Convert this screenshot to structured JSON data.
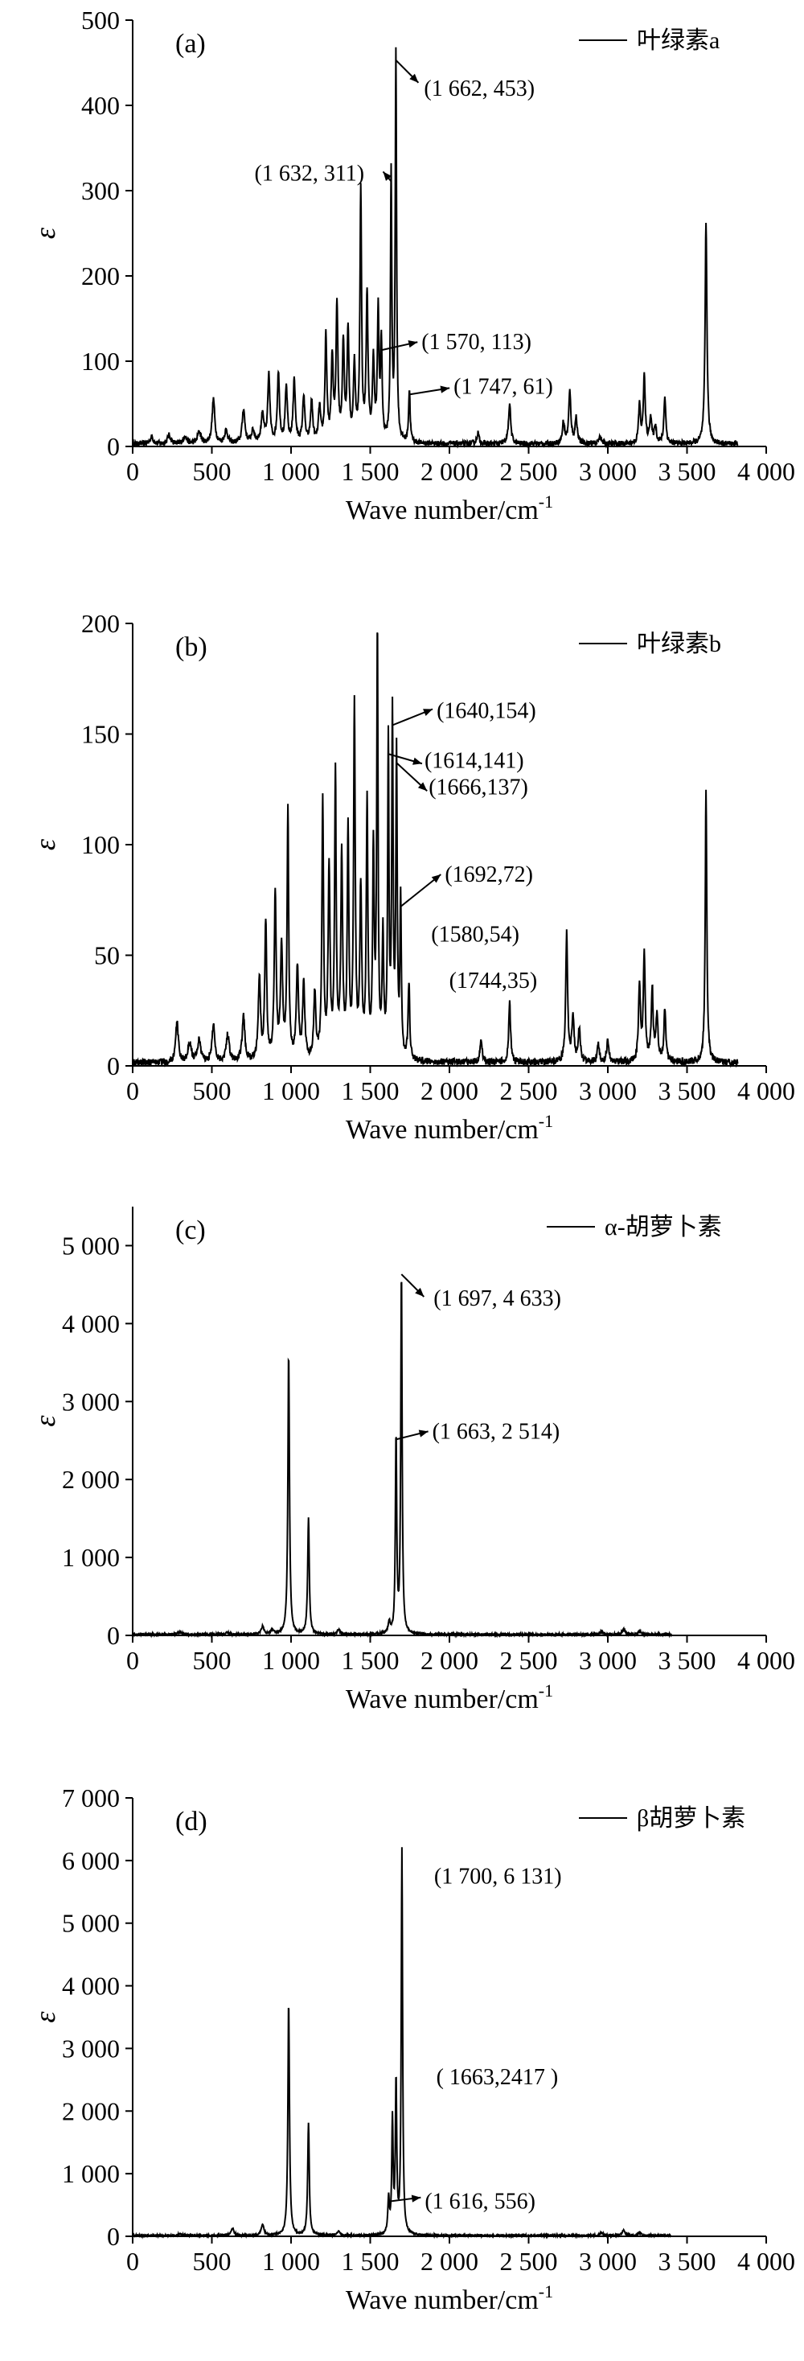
{
  "chart_data": [
    {
      "type": "line",
      "panel_label": "(a)",
      "legend": "叶绿素a",
      "xlabel": "Wave number/cm",
      "xlabel_sup": "-1",
      "ylabel": "ε",
      "xlim": [
        0,
        4000
      ],
      "ylim": [
        0,
        500
      ],
      "x_ticks": [
        0,
        500,
        1000,
        1500,
        2000,
        2500,
        3000,
        3500,
        4000
      ],
      "x_tick_labels": [
        "0",
        "500",
        "1 000",
        "1 500",
        "2 000",
        "2 500",
        "3 000",
        "3 500",
        "4 000"
      ],
      "y_ticks": [
        0,
        100,
        200,
        300,
        400,
        500
      ],
      "y_tick_labels": [
        "0",
        "100",
        "200",
        "300",
        "400",
        "500"
      ],
      "baseline_noise": 6,
      "x_end": 3820,
      "peaks": [
        [
          120,
          8,
          12
        ],
        [
          230,
          10,
          12
        ],
        [
          330,
          9,
          12
        ],
        [
          420,
          14,
          12
        ],
        [
          510,
          52,
          10
        ],
        [
          590,
          15,
          12
        ],
        [
          700,
          40,
          10
        ],
        [
          760,
          14,
          12
        ],
        [
          820,
          35,
          10
        ],
        [
          860,
          78,
          8
        ],
        [
          920,
          82,
          8
        ],
        [
          970,
          64,
          8
        ],
        [
          1020,
          75,
          8
        ],
        [
          1080,
          55,
          8
        ],
        [
          1130,
          48,
          8
        ],
        [
          1180,
          40,
          8
        ],
        [
          1220,
          125,
          7
        ],
        [
          1260,
          98,
          7
        ],
        [
          1290,
          160,
          7
        ],
        [
          1330,
          115,
          7
        ],
        [
          1360,
          130,
          7
        ],
        [
          1400,
          90,
          7
        ],
        [
          1440,
          293,
          6
        ],
        [
          1480,
          172,
          7
        ],
        [
          1520,
          95,
          7
        ],
        [
          1550,
          153,
          6
        ],
        [
          1570,
          113,
          6
        ],
        [
          1632,
          311,
          5
        ],
        [
          1662,
          453,
          5
        ],
        [
          1747,
          61,
          6
        ],
        [
          2180,
          13,
          8
        ],
        [
          2380,
          48,
          8
        ],
        [
          2720,
          25,
          8
        ],
        [
          2760,
          60,
          8
        ],
        [
          2800,
          30,
          8
        ],
        [
          2950,
          10,
          8
        ],
        [
          3200,
          45,
          7
        ],
        [
          3230,
          78,
          7
        ],
        [
          3270,
          30,
          8
        ],
        [
          3300,
          20,
          8
        ],
        [
          3360,
          55,
          7
        ],
        [
          3620,
          260,
          7
        ]
      ],
      "annotations": [
        {
          "label": "(1 662, 453)",
          "x": 1662,
          "y": 453
        },
        {
          "label": "(1 632, 311)",
          "x": 1632,
          "y": 311
        },
        {
          "label": "(1 570, 113)",
          "x": 1570,
          "y": 113
        },
        {
          "label": "(1 747, 61)",
          "x": 1747,
          "y": 61
        }
      ]
    },
    {
      "type": "line",
      "panel_label": "(b)",
      "legend": "叶绿素b",
      "xlabel": "Wave number/cm",
      "xlabel_sup": "-1",
      "ylabel": "ε",
      "xlim": [
        0,
        4000
      ],
      "ylim": [
        0,
        200
      ],
      "x_ticks": [
        0,
        500,
        1000,
        1500,
        2000,
        2500,
        3000,
        3500,
        4000
      ],
      "x_tick_labels": [
        "0",
        "500",
        "1 000",
        "1 500",
        "2 000",
        "2 500",
        "3 000",
        "3 500",
        "4 000"
      ],
      "y_ticks": [
        0,
        50,
        100,
        150,
        200
      ],
      "y_tick_labels": [
        "0",
        "50",
        "100",
        "150",
        "200"
      ],
      "baseline_noise": 3,
      "x_end": 3820,
      "peaks": [
        [
          280,
          18,
          10
        ],
        [
          360,
          8,
          12
        ],
        [
          420,
          10,
          12
        ],
        [
          510,
          17,
          10
        ],
        [
          600,
          12,
          12
        ],
        [
          700,
          20,
          10
        ],
        [
          800,
          38,
          8
        ],
        [
          840,
          63,
          7
        ],
        [
          900,
          76,
          7
        ],
        [
          940,
          50,
          8
        ],
        [
          980,
          113,
          6
        ],
        [
          1040,
          42,
          8
        ],
        [
          1080,
          35,
          8
        ],
        [
          1150,
          30,
          8
        ],
        [
          1200,
          115,
          6
        ],
        [
          1240,
          85,
          7
        ],
        [
          1280,
          128,
          6
        ],
        [
          1320,
          90,
          7
        ],
        [
          1360,
          102,
          6
        ],
        [
          1400,
          160,
          6
        ],
        [
          1440,
          75,
          7
        ],
        [
          1480,
          115,
          6
        ],
        [
          1520,
          92,
          6
        ],
        [
          1545,
          190,
          5
        ],
        [
          1580,
          54,
          6
        ],
        [
          1614,
          141,
          5
        ],
        [
          1640,
          154,
          5
        ],
        [
          1666,
          137,
          5
        ],
        [
          1692,
          72,
          5
        ],
        [
          1744,
          35,
          6
        ],
        [
          2200,
          10,
          8
        ],
        [
          2380,
          27,
          7
        ],
        [
          2740,
          58,
          7
        ],
        [
          2780,
          20,
          8
        ],
        [
          2820,
          15,
          8
        ],
        [
          2940,
          8,
          8
        ],
        [
          3000,
          10,
          8
        ],
        [
          3200,
          35,
          7
        ],
        [
          3230,
          48,
          7
        ],
        [
          3280,
          33,
          7
        ],
        [
          3310,
          20,
          8
        ],
        [
          3360,
          24,
          7
        ],
        [
          3620,
          124,
          6
        ]
      ],
      "annotations": [
        {
          "label": "(1640,154)",
          "x": 1640,
          "y": 154
        },
        {
          "label": "(1614,141)",
          "x": 1614,
          "y": 141
        },
        {
          "label": "(1666,137)",
          "x": 1666,
          "y": 137
        },
        {
          "label": "(1692,72)",
          "x": 1692,
          "y": 72
        },
        {
          "label": "(1580,54)",
          "x": 1580,
          "y": 54
        },
        {
          "label": "(1744,35)",
          "x": 1744,
          "y": 35
        }
      ]
    },
    {
      "type": "line",
      "panel_label": "(c)",
      "legend": "α-胡萝卜素",
      "xlabel": "Wave number/cm",
      "xlabel_sup": "-1",
      "ylabel": "ε",
      "xlim": [
        0,
        4000
      ],
      "ylim": [
        0,
        5500
      ],
      "x_ticks": [
        0,
        500,
        1000,
        1500,
        2000,
        2500,
        3000,
        3500,
        4000
      ],
      "x_tick_labels": [
        "0",
        "500",
        "1 000",
        "1 500",
        "2 000",
        "2 500",
        "3 000",
        "3 500",
        "4 000"
      ],
      "y_ticks": [
        0,
        1000,
        2000,
        3000,
        4000,
        5000
      ],
      "y_tick_labels": [
        "0",
        "1 000",
        "2 000",
        "3 000",
        "4 000",
        "5 000"
      ],
      "baseline_noise": 25,
      "x_end": 3400,
      "peaks": [
        [
          300,
          30,
          12
        ],
        [
          600,
          25,
          12
        ],
        [
          820,
          100,
          10
        ],
        [
          880,
          60,
          10
        ],
        [
          985,
          3600,
          6
        ],
        [
          1110,
          1490,
          6
        ],
        [
          1300,
          60,
          10
        ],
        [
          1620,
          150,
          8
        ],
        [
          1663,
          2514,
          5
        ],
        [
          1697,
          4633,
          5
        ],
        [
          2960,
          40,
          10
        ],
        [
          3100,
          70,
          10
        ],
        [
          3200,
          40,
          10
        ]
      ],
      "annotations": [
        {
          "label": "(1 697, 4 633)",
          "x": 1697,
          "y": 4633
        },
        {
          "label": "(1 663, 2 514)",
          "x": 1663,
          "y": 2514
        }
      ]
    },
    {
      "type": "line",
      "panel_label": "(d)",
      "legend": "β胡萝卜素",
      "xlabel": "Wave number/cm",
      "xlabel_sup": "-1",
      "ylabel": "ε",
      "xlim": [
        0,
        4000
      ],
      "ylim": [
        0,
        7000
      ],
      "x_ticks": [
        0,
        500,
        1000,
        1500,
        2000,
        2500,
        3000,
        3500,
        4000
      ],
      "x_tick_labels": [
        "0",
        "500",
        "1 000",
        "1 500",
        "2 000",
        "2 500",
        "3 000",
        "3 500",
        "4 000"
      ],
      "y_ticks": [
        0,
        1000,
        2000,
        3000,
        4000,
        5000,
        6000,
        7000
      ],
      "y_tick_labels": [
        "0",
        "1 000",
        "2 000",
        "3 000",
        "4 000",
        "5 000",
        "6 000",
        "7 000"
      ],
      "baseline_noise": 25,
      "x_end": 3400,
      "peaks": [
        [
          300,
          30,
          12
        ],
        [
          630,
          120,
          10
        ],
        [
          820,
          180,
          10
        ],
        [
          985,
          3720,
          6
        ],
        [
          1110,
          1780,
          6
        ],
        [
          1300,
          60,
          10
        ],
        [
          1616,
          556,
          6
        ],
        [
          1640,
          1800,
          5
        ],
        [
          1663,
          2417,
          5
        ],
        [
          1700,
          6131,
          5
        ],
        [
          2960,
          50,
          10
        ],
        [
          3100,
          90,
          10
        ],
        [
          3200,
          50,
          10
        ]
      ],
      "annotations": [
        {
          "label": "(1 700, 6 131)",
          "x": 1700,
          "y": 6131
        },
        {
          "label": "( 1663,2417 )",
          "x": 1663,
          "y": 2417
        },
        {
          "label": "(1 616, 556)",
          "x": 1616,
          "y": 556
        }
      ]
    }
  ]
}
